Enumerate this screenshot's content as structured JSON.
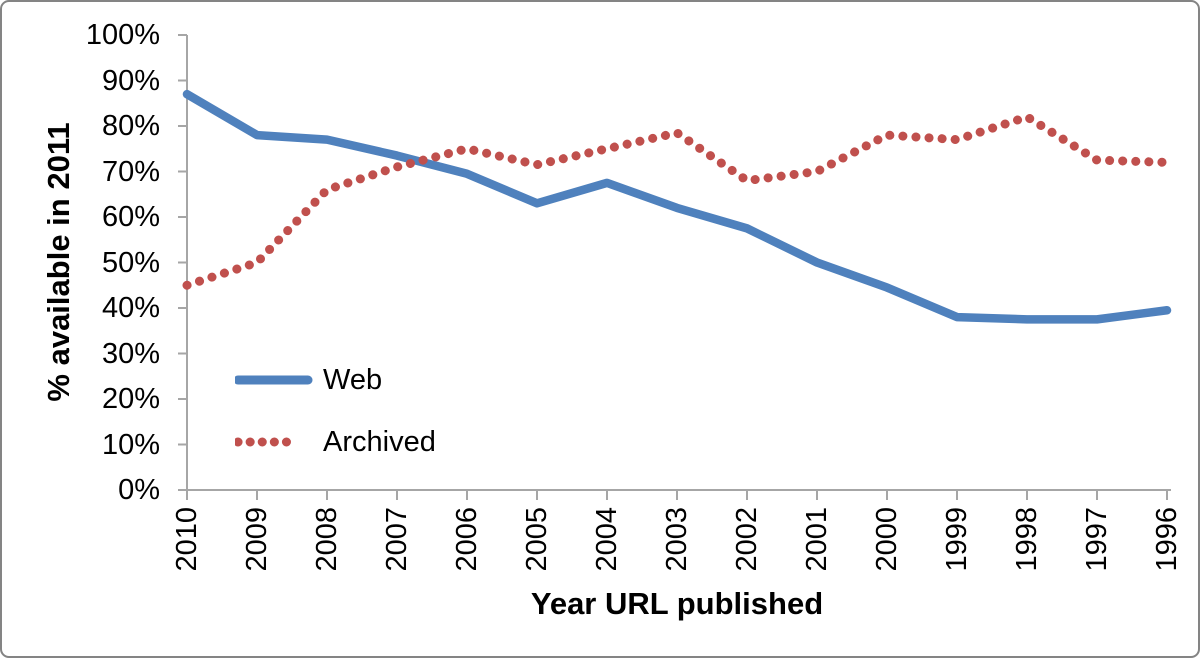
{
  "chart_data": {
    "type": "line",
    "xlabel": "Year URL published",
    "ylabel": "% available in 2011",
    "categories": [
      "2010",
      "2009",
      "2008",
      "2007",
      "2006",
      "2005",
      "2004",
      "2003",
      "2002",
      "2001",
      "2000",
      "1999",
      "1998",
      "1997",
      "1996"
    ],
    "x_order_note": "x axis runs newest (2010) at left to oldest (1996) at right",
    "series": [
      {
        "name": "Web",
        "color": "#4F81BD",
        "style": "solid",
        "values": [
          87,
          78,
          77,
          73.5,
          69.5,
          63,
          67.5,
          62,
          57.5,
          50,
          44.5,
          38,
          37.5,
          37.5,
          39.5
        ]
      },
      {
        "name": "Archived",
        "color": "#C0504D",
        "style": "dotted",
        "values": [
          45,
          50,
          66,
          71,
          75,
          71.5,
          75,
          78.5,
          68,
          70,
          78,
          77,
          82,
          72.5,
          72
        ]
      }
    ],
    "ylim": [
      0,
      100
    ],
    "ytick_labels": [
      "0%",
      "10%",
      "20%",
      "30%",
      "40%",
      "50%",
      "60%",
      "70%",
      "80%",
      "90%",
      "100%"
    ],
    "grid": false,
    "legend_position": "inside-left",
    "colors": {
      "axis": "#A6A6A6",
      "text": "#000000",
      "frame_border": "#848484",
      "background": "#FFFFFF"
    }
  }
}
